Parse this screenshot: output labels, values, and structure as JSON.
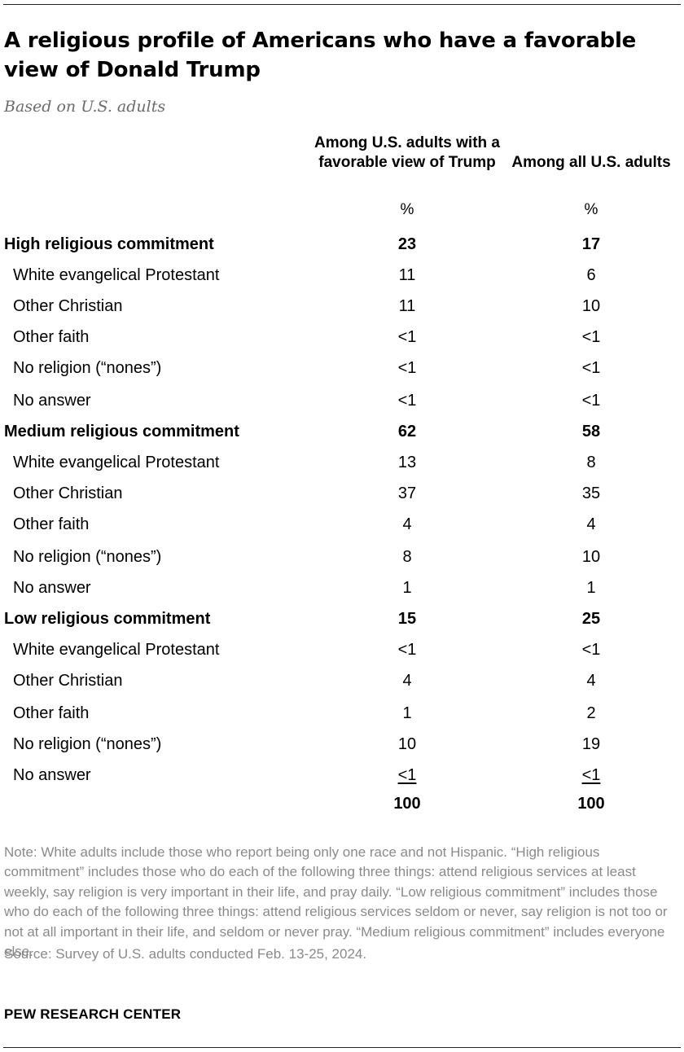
{
  "title": "A religious profile of Americans who have a favorable view of Donald Trump",
  "subtitle": "Based on U.S. adults",
  "columns": [
    {
      "header": "Among U.S. adults with a favorable view of Trump",
      "unit": "%"
    },
    {
      "header": "Among all U.S. adults",
      "unit": "%"
    }
  ],
  "chart_data": {
    "type": "table",
    "title": "A religious profile of Americans who have a favorable view of Donald Trump",
    "columns": [
      "Among U.S. adults with a favorable view of Trump",
      "Among all U.S. adults"
    ],
    "rows": [
      {
        "label": "High religious commitment",
        "group": true,
        "values": [
          "23",
          "17"
        ]
      },
      {
        "label": "White evangelical Protestant",
        "values": [
          "11",
          "6"
        ]
      },
      {
        "label": "Other Christian",
        "values": [
          "11",
          "10"
        ]
      },
      {
        "label": "Other faith",
        "values": [
          "<1",
          "<1"
        ]
      },
      {
        "label": "No religion (“nones”)",
        "values": [
          "<1",
          "<1"
        ]
      },
      {
        "label": "No answer",
        "values": [
          "<1",
          "<1"
        ]
      },
      {
        "label": "Medium religious commitment",
        "group": true,
        "values": [
          "62",
          "58"
        ]
      },
      {
        "label": "White evangelical Protestant",
        "values": [
          "13",
          "8"
        ]
      },
      {
        "label": "Other Christian",
        "values": [
          "37",
          "35"
        ]
      },
      {
        "label": "Other faith",
        "values": [
          "4",
          "4"
        ]
      },
      {
        "label": "No religion (“nones”)",
        "values": [
          "8",
          "10"
        ]
      },
      {
        "label": "No answer",
        "values": [
          "1",
          "1"
        ]
      },
      {
        "label": "Low religious commitment",
        "group": true,
        "values": [
          "15",
          "25"
        ]
      },
      {
        "label": "White evangelical Protestant",
        "values": [
          "<1",
          "<1"
        ]
      },
      {
        "label": "Other Christian",
        "values": [
          "4",
          "4"
        ]
      },
      {
        "label": "Other faith",
        "values": [
          "1",
          "2"
        ]
      },
      {
        "label": "No religion (“nones”)",
        "values": [
          "10",
          "19"
        ]
      },
      {
        "label": "No answer",
        "values": [
          "<1",
          "<1"
        ],
        "underline": true
      }
    ],
    "totals": [
      "100",
      "100"
    ]
  },
  "note": "Note: White adults include those who report being only one race and not Hispanic. “High religious commitment” includes those who do each of the following three things: attend religious services at least weekly, say religion is very important in their life, and pray daily. “Low religious commitment” includes those who do each of the following three things: attend religious services seldom or never, say religion is not too or not at all important in their life, and seldom or never pray. “Medium religious commitment” includes everyone else.",
  "source": "Source: Survey of U.S. adults conducted Feb. 13-25, 2024.",
  "brand": "PEW RESEARCH CENTER"
}
